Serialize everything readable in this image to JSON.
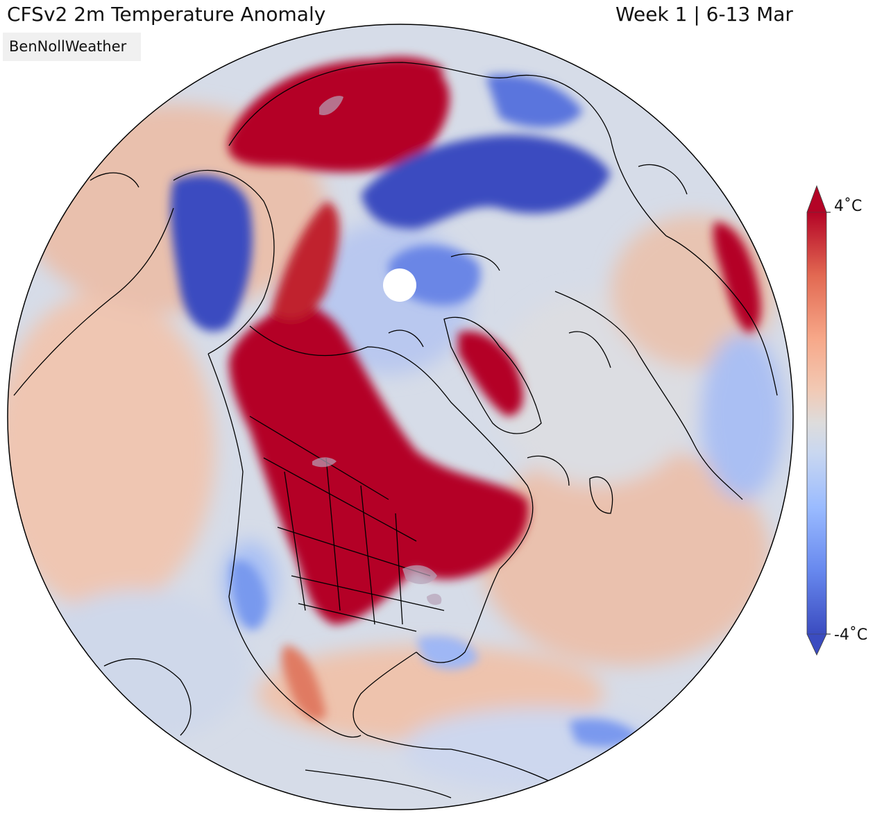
{
  "header": {
    "title": "CFSv2 2m Temperature Anomaly",
    "period": "Week 1 | 6-13 Mar"
  },
  "credit": {
    "label": "BenNollWeather"
  },
  "map": {
    "projection": "orthographic, north-polar view centered over North America",
    "region": "Northern Hemisphere",
    "colors": {
      "strong_warm": "#b40426",
      "warm": "#f08a6d",
      "neutral": "#dddcdc",
      "cool": "#8db0fe",
      "strong_cool": "#3b4cc0",
      "coastline": "#000000"
    }
  },
  "colorbar": {
    "max_label": "4˚C",
    "min_label": "-4˚C",
    "max_value": 4,
    "min_value": -4,
    "unit": "˚C",
    "extends": "both",
    "colormap": [
      "#3b4cc0",
      "#6788ee",
      "#9abbff",
      "#c9d7f0",
      "#dddcdc",
      "#f2c9b4",
      "#f7a889",
      "#e26952",
      "#b40426"
    ]
  }
}
